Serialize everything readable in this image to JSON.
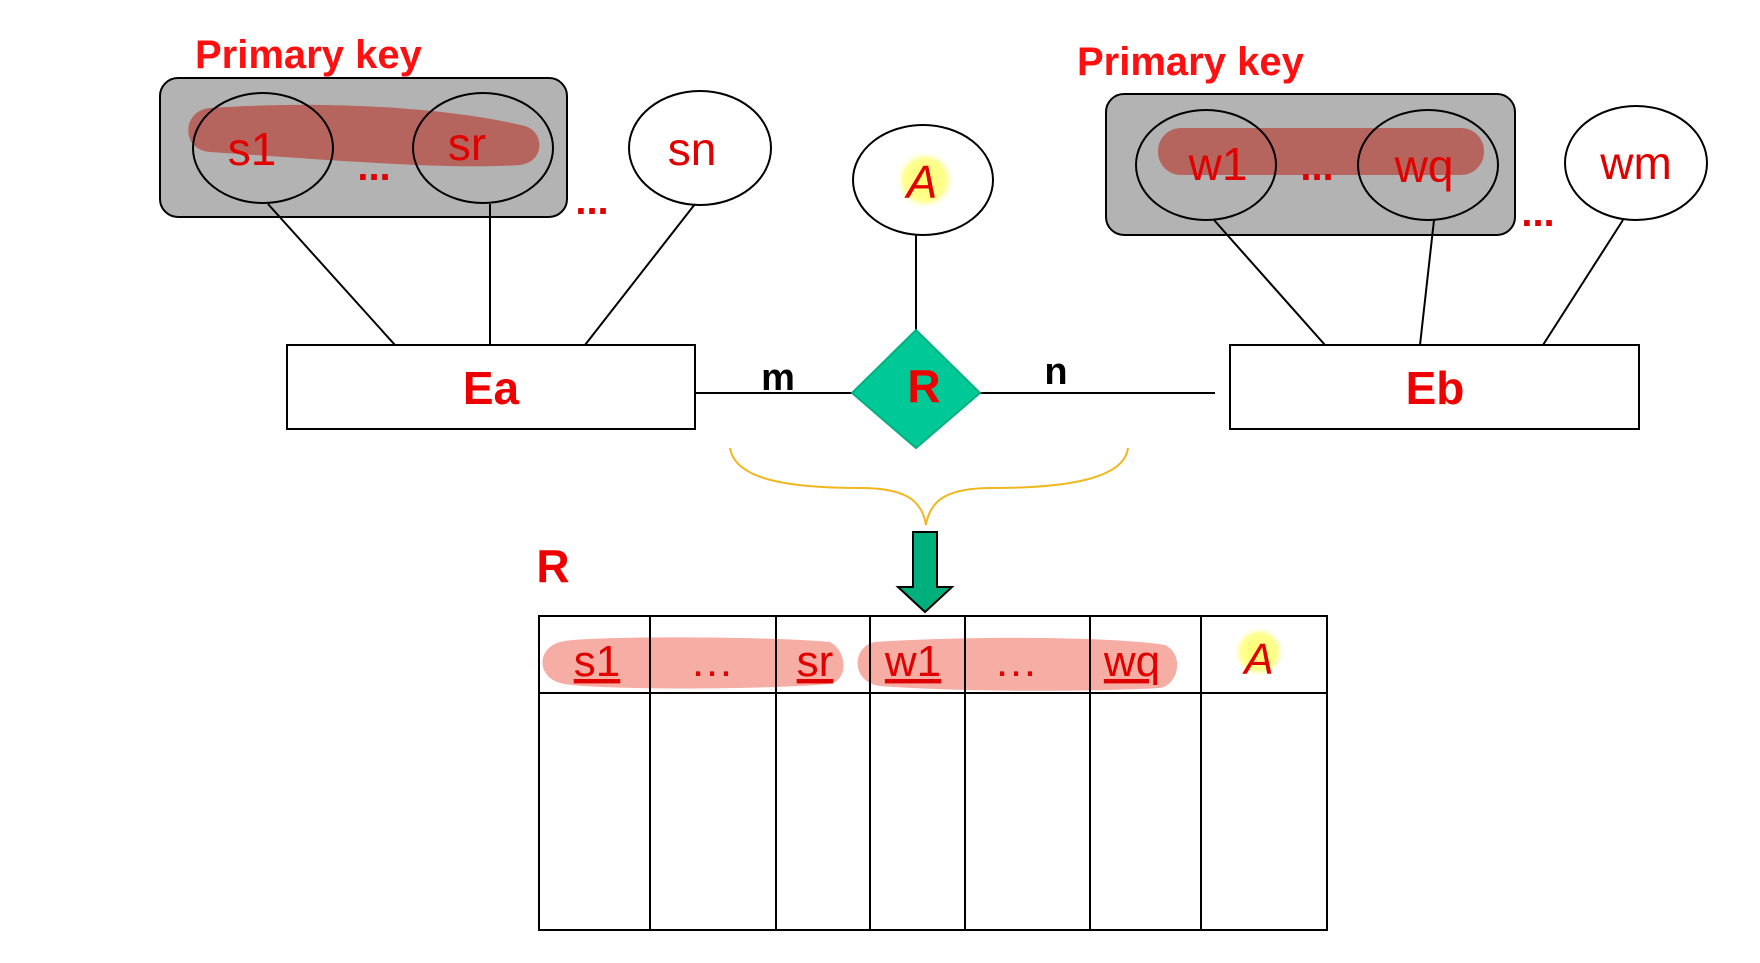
{
  "left_group": {
    "label": "Primary key",
    "attrs": [
      "s1",
      "sr"
    ],
    "key_dots": "...",
    "outer_dots": "...",
    "extra_attr": "sn"
  },
  "right_group": {
    "label": "Primary key",
    "attrs": [
      "w1",
      "wq"
    ],
    "key_dots": "...",
    "outer_dots": "...",
    "extra_attr": "wm"
  },
  "relationship": {
    "name": "R",
    "attribute": "A",
    "left_cardinality": "m",
    "right_cardinality": "n"
  },
  "entities": {
    "left": "Ea",
    "right": "Eb"
  },
  "table": {
    "title": "R",
    "headers": [
      "s1",
      "…",
      "sr",
      "w1",
      "…",
      "wq",
      "A"
    ],
    "empty_rows": 1
  },
  "colors": {
    "label_red": "#ff1010",
    "key_box_gray": "#b3b3b3",
    "key_highlight": "#b5574e",
    "table_highlight": "#f4a49a",
    "diamond_green": "#00c896",
    "arrow_green": "#00b07c",
    "brace_yellow": "#f0b820",
    "attr_glow_yellow": "#ffff80"
  }
}
